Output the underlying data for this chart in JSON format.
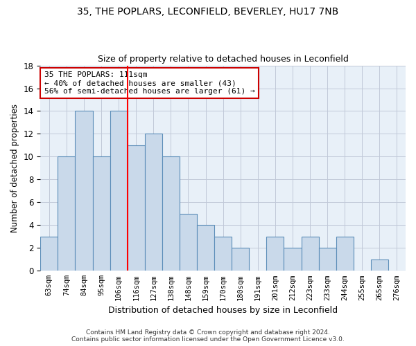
{
  "title1": "35, THE POPLARS, LECONFIELD, BEVERLEY, HU17 7NB",
  "title2": "Size of property relative to detached houses in Leconfield",
  "xlabel": "Distribution of detached houses by size in Leconfield",
  "ylabel": "Number of detached properties",
  "categories": [
    "63sqm",
    "74sqm",
    "84sqm",
    "95sqm",
    "106sqm",
    "116sqm",
    "127sqm",
    "138sqm",
    "148sqm",
    "159sqm",
    "170sqm",
    "180sqm",
    "191sqm",
    "201sqm",
    "212sqm",
    "223sqm",
    "233sqm",
    "244sqm",
    "255sqm",
    "265sqm",
    "276sqm"
  ],
  "values": [
    3,
    10,
    14,
    10,
    14,
    11,
    12,
    10,
    5,
    4,
    3,
    2,
    0,
    3,
    2,
    3,
    2,
    3,
    0,
    1,
    0
  ],
  "bar_color": "#c9d9ea",
  "bar_edge_color": "#5b8db8",
  "ylim": [
    0,
    18
  ],
  "yticks": [
    0,
    2,
    4,
    6,
    8,
    10,
    12,
    14,
    16,
    18
  ],
  "annotation_line1": "35 THE POPLARS: 111sqm",
  "annotation_line2": "← 40% of detached houses are smaller (43)",
  "annotation_line3": "56% of semi-detached houses are larger (61) →",
  "annotation_box_color": "#ffffff",
  "annotation_border_color": "#cc0000",
  "footer1": "Contains HM Land Registry data © Crown copyright and database right 2024.",
  "footer2": "Contains public sector information licensed under the Open Government Licence v3.0.",
  "background_color": "#ffffff",
  "plot_bg_color": "#e8f0f8",
  "grid_color": "#c0c8d8",
  "red_line_x": 4.5
}
